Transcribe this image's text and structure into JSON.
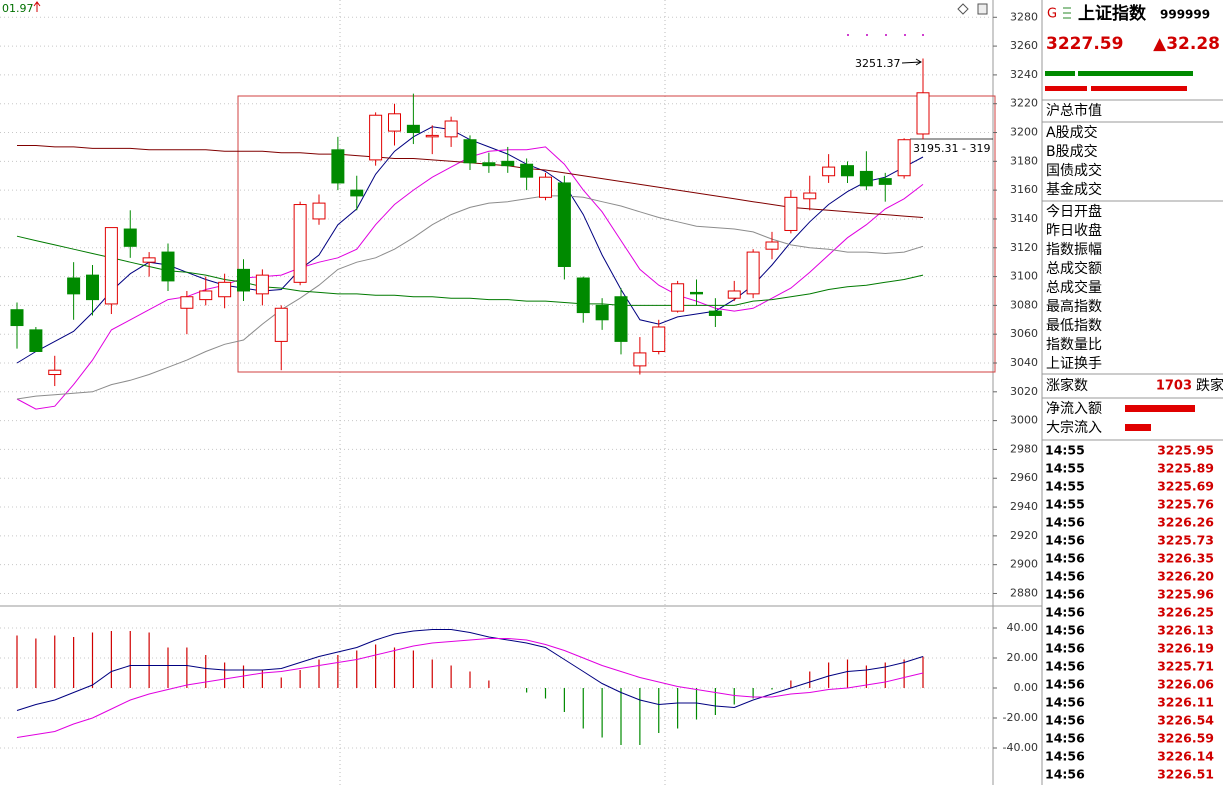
{
  "chart_data": [
    {
      "type": "candlestick",
      "annotations": [
        "01.97",
        "3195.31 - 319"
      ],
      "open": [
        3077,
        3063,
        3032,
        3099,
        3101,
        3081,
        3133,
        3110,
        3117,
        3078,
        3084,
        3086,
        3105,
        3088,
        3055,
        3096,
        3140,
        3188,
        3160,
        3181,
        3201,
        3205,
        3197,
        3197,
        3195,
        3179,
        3180,
        3178,
        3155,
        3165,
        3099,
        3080,
        3086,
        3038,
        3048,
        3076,
        3089,
        3076,
        3085,
        3088,
        3119,
        3132,
        3154,
        3170,
        3177,
        3173,
        3168,
        3170,
        3199
      ],
      "high": [
        3082,
        3065,
        3045,
        3110,
        3108,
        3134,
        3146,
        3117,
        3123,
        3090,
        3100,
        3102,
        3112,
        3105,
        3080,
        3152,
        3157,
        3197,
        3170,
        3214,
        3220,
        3227,
        3205,
        3211,
        3198,
        3186,
        3190,
        3182,
        3172,
        3170,
        3100,
        3085,
        3092,
        3058,
        3070,
        3097,
        3098,
        3085,
        3097,
        3119,
        3131,
        3160,
        3170,
        3185,
        3180,
        3187,
        3172,
        3196,
        3251.37
      ],
      "low": [
        3050,
        3048,
        3024,
        3070,
        3073,
        3074,
        3113,
        3100,
        3090,
        3060,
        3080,
        3078,
        3083,
        3080,
        3035,
        3094,
        3136,
        3160,
        3146,
        3177,
        3191,
        3192,
        3185,
        3190,
        3174,
        3172,
        3172,
        3160,
        3153,
        3098,
        3068,
        3063,
        3046,
        3032,
        3046,
        3075,
        3080,
        3065,
        3083,
        3085,
        3112,
        3130,
        3146,
        3165,
        3165,
        3160,
        3152,
        3168,
        3195.31
      ],
      "close": [
        3066,
        3048,
        3035,
        3088,
        3084,
        3134,
        3121,
        3113,
        3097,
        3086,
        3090,
        3096,
        3090,
        3101,
        3078,
        3150,
        3151,
        3165,
        3156,
        3212,
        3213,
        3200,
        3198,
        3208,
        3179,
        3177,
        3177,
        3169,
        3169,
        3107,
        3075,
        3070,
        3055,
        3047,
        3065,
        3095,
        3088,
        3073,
        3090,
        3117,
        3124,
        3155,
        3158,
        3176,
        3170,
        3163,
        3164,
        3195,
        3227.59
      ],
      "up_color": "#e00000",
      "down_color": "#008a00",
      "series": [
        {
          "color": "#000080",
          "values": [
            3040,
            3048,
            3055,
            3062,
            3075,
            3090,
            3102,
            3110,
            3108,
            3103,
            3098,
            3094,
            3092,
            3090,
            3091,
            3105,
            3115,
            3136,
            3147,
            3171,
            3187,
            3197,
            3204,
            3202,
            3195,
            3190,
            3185,
            3178,
            3173,
            3164,
            3143,
            3115,
            3091,
            3070,
            3067,
            3072,
            3074,
            3076,
            3084,
            3094,
            3108,
            3124,
            3138,
            3150,
            3159,
            3166,
            3169,
            3176,
            3183
          ]
        },
        {
          "color": "#e000e0",
          "values": [
            3015,
            3008,
            3010,
            3025,
            3042,
            3063,
            3070,
            3077,
            3084,
            3086,
            3091,
            3094,
            3099,
            3100,
            3101,
            3106,
            3110,
            3113,
            3119,
            3136,
            3150,
            3160,
            3169,
            3176,
            3183,
            3187,
            3188,
            3188,
            3190,
            3178,
            3160,
            3145,
            3125,
            3105,
            3094,
            3087,
            3083,
            3078,
            3076,
            3078,
            3085,
            3092,
            3103,
            3115,
            3127,
            3136,
            3147,
            3154,
            3164
          ]
        },
        {
          "color": "#8c8c8c",
          "values": [
            3015,
            3017,
            3018,
            3019,
            3020,
            3025,
            3028,
            3032,
            3037,
            3042,
            3048,
            3053,
            3056,
            3067,
            3077,
            3085,
            3094,
            3105,
            3110,
            3113,
            3119,
            3127,
            3136,
            3143,
            3148,
            3151,
            3152,
            3154,
            3156,
            3156,
            3155,
            3152,
            3149,
            3145,
            3141,
            3138,
            3135,
            3134,
            3133,
            3131,
            3126,
            3122,
            3120,
            3119,
            3117,
            3117,
            3116,
            3117,
            3121
          ]
        },
        {
          "color": "#007a00",
          "values": [
            3128,
            3125,
            3122,
            3119,
            3116,
            3113,
            3110,
            3107,
            3104,
            3103,
            3101,
            3098,
            3096,
            3093,
            3092,
            3090,
            3089,
            3088,
            3088,
            3087,
            3087,
            3086,
            3086,
            3085,
            3085,
            3084,
            3084,
            3083,
            3083,
            3082,
            3081,
            3081,
            3080,
            3080,
            3080,
            3080,
            3080,
            3080,
            3080,
            3083,
            3084,
            3086,
            3088,
            3091,
            3093,
            3094,
            3096,
            3098,
            3101
          ]
        },
        {
          "color": "#800000",
          "values": [
            3191,
            3191,
            3190,
            3190,
            3189,
            3189,
            3189,
            3188,
            3188,
            3188,
            3188,
            3187,
            3187,
            3187,
            3186,
            3186,
            3185,
            3185,
            3184,
            3183,
            3182,
            3182,
            3181,
            3180,
            3179,
            3178,
            3177,
            3175,
            3174,
            3172,
            3170,
            3168,
            3166,
            3164,
            3162,
            3160,
            3158,
            3156,
            3154,
            3152,
            3150,
            3148,
            3147,
            3146,
            3145,
            3144,
            3143,
            3142,
            3141
          ]
        }
      ],
      "ylim": [
        2872,
        3292
      ],
      "yticks": [
        2880,
        2900,
        2920,
        2940,
        2960,
        2980,
        3000,
        3020,
        3040,
        3060,
        3080,
        3100,
        3120,
        3140,
        3160,
        3180,
        3200,
        3220,
        3240,
        3260,
        3280
      ],
      "grid": true
    },
    {
      "type": "macd",
      "values": [
        35,
        33,
        35,
        34,
        37,
        38,
        38,
        37,
        27,
        27,
        22,
        17,
        15,
        12,
        7,
        12,
        19,
        22,
        25,
        29,
        27,
        25,
        19,
        15,
        11,
        5,
        0,
        -3,
        -7,
        -16,
        -27,
        -33,
        -38,
        -38,
        -30,
        -27,
        -21,
        -18,
        -11,
        -7,
        -1,
        5,
        11,
        17,
        19,
        15,
        17,
        19,
        21
      ],
      "pos_color": "#d00000",
      "neg_color": "#008a00",
      "series": [
        {
          "color": "#000080",
          "values": [
            -15,
            -11,
            -8,
            -3,
            2,
            11,
            15,
            15,
            15,
            15,
            13,
            12,
            12,
            12,
            13,
            17,
            21,
            24,
            27,
            32,
            36,
            38,
            39,
            39,
            37,
            34,
            32,
            30,
            27,
            19,
            11,
            3,
            -3,
            -8,
            -11,
            -10,
            -10,
            -12,
            -13,
            -8,
            -4,
            0,
            4,
            8,
            11,
            12,
            14,
            17,
            21
          ]
        },
        {
          "color": "#e000e0",
          "values": [
            -33,
            -31,
            -29,
            -24,
            -20,
            -14,
            -8,
            -4,
            -1,
            2,
            4,
            6,
            8,
            10,
            11,
            13,
            15,
            17,
            19,
            22,
            25,
            28,
            30,
            31,
            32,
            33,
            33,
            32,
            29,
            25,
            20,
            15,
            11,
            7,
            4,
            1,
            -1,
            -3,
            -5,
            -6,
            -6,
            -4,
            -3,
            -1,
            0,
            2,
            4,
            7,
            10
          ]
        }
      ],
      "ylim": [
        -65,
        52
      ],
      "yticks": [
        {
          "value": 40,
          "label": "40.00"
        },
        {
          "value": 20,
          "label": "20.00"
        },
        {
          "value": 0,
          "label": "0.00"
        },
        {
          "value": -20,
          "label": "-20.00"
        },
        {
          "value": -40,
          "label": "-40.00"
        }
      ],
      "grid": true
    }
  ],
  "panel": {
    "tag": "G",
    "name": "上证指数",
    "code": "999999",
    "price": "3227.59",
    "change": "▲32.28",
    "labels": [
      "沪总市值",
      "A股成交",
      "B股成交",
      "国债成交",
      "基金成交",
      "今日开盘",
      "昨日收盘",
      "指数振幅",
      "总成交额",
      "总成交量",
      "最高指数",
      "最低指数",
      "指数量比",
      "上证换手"
    ],
    "advance_label": "涨家数",
    "advance_count": "1703",
    "decline_label": "跌家",
    "flow_labels": [
      "净流入额",
      "大宗流入"
    ],
    "ticks": [
      [
        "14:55",
        "3225.95"
      ],
      [
        "14:55",
        "3225.89"
      ],
      [
        "14:55",
        "3225.69"
      ],
      [
        "14:55",
        "3225.76"
      ],
      [
        "14:56",
        "3226.26"
      ],
      [
        "14:56",
        "3225.73"
      ],
      [
        "14:56",
        "3226.35"
      ],
      [
        "14:56",
        "3226.20"
      ],
      [
        "14:56",
        "3225.96"
      ],
      [
        "14:56",
        "3226.25"
      ],
      [
        "14:56",
        "3226.13"
      ],
      [
        "14:56",
        "3226.19"
      ],
      [
        "14:56",
        "3225.71"
      ],
      [
        "14:56",
        "3226.06"
      ],
      [
        "14:56",
        "3226.11"
      ],
      [
        "14:56",
        "3226.54"
      ],
      [
        "14:56",
        "3226.59"
      ],
      [
        "14:56",
        "3226.14"
      ],
      [
        "14:56",
        "3226.51"
      ]
    ]
  }
}
